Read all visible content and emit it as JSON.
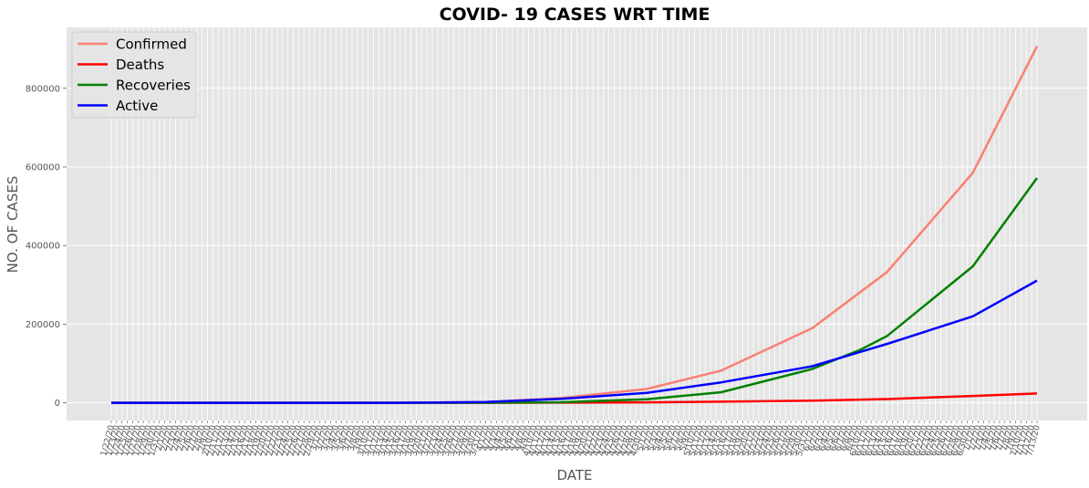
{
  "chart_data": {
    "type": "line",
    "title": "COVID- 19 CASES WRT TIME",
    "xlabel": "DATE",
    "ylabel": "NO. OF CASES",
    "x_start": "1/22/20",
    "x_end": "7/13/20",
    "ylim": [
      -45000,
      955000
    ],
    "yticks": [
      0,
      200000,
      400000,
      600000,
      800000
    ],
    "grid": true,
    "legend_position": "top-left",
    "series": [
      {
        "name": "Confirmed",
        "color": "#fa8072",
        "x": [
          "1/22/20",
          "3/1/20",
          "3/15/20",
          "4/1/20",
          "4/15/20",
          "5/1/20",
          "5/15/20",
          "6/1/20",
          "6/15/20",
          "7/1/20",
          "7/13/20"
        ],
        "values": [
          0,
          0,
          100,
          2000,
          12000,
          35000,
          82000,
          190000,
          333000,
          585000,
          907000
        ]
      },
      {
        "name": "Deaths",
        "color": "#ff0000",
        "x": [
          "1/22/20",
          "3/1/20",
          "4/1/20",
          "4/15/20",
          "5/1/20",
          "5/15/20",
          "6/1/20",
          "6/15/20",
          "7/1/20",
          "7/13/20"
        ],
        "values": [
          0,
          0,
          50,
          400,
          1100,
          2700,
          5400,
          9500,
          17400,
          23700
        ]
      },
      {
        "name": "Recoveries",
        "color": "#008000",
        "x": [
          "1/22/20",
          "3/1/20",
          "3/15/20",
          "4/1/20",
          "4/15/20",
          "5/1/20",
          "5/15/20",
          "6/1/20",
          "6/10/20",
          "6/15/20",
          "7/1/20",
          "7/13/20"
        ],
        "values": [
          0,
          0,
          20,
          200,
          1500,
          9000,
          27000,
          86000,
          135000,
          170000,
          347000,
          572000
        ]
      },
      {
        "name": "Active",
        "color": "#0000ff",
        "x": [
          "1/22/20",
          "3/1/20",
          "3/15/20",
          "4/1/20",
          "4/15/20",
          "5/1/20",
          "5/15/20",
          "6/1/20",
          "6/15/20",
          "7/1/20",
          "7/13/20"
        ],
        "values": [
          0,
          0,
          80,
          1800,
          10000,
          25000,
          52000,
          93000,
          150000,
          220000,
          311000
        ]
      }
    ]
  }
}
